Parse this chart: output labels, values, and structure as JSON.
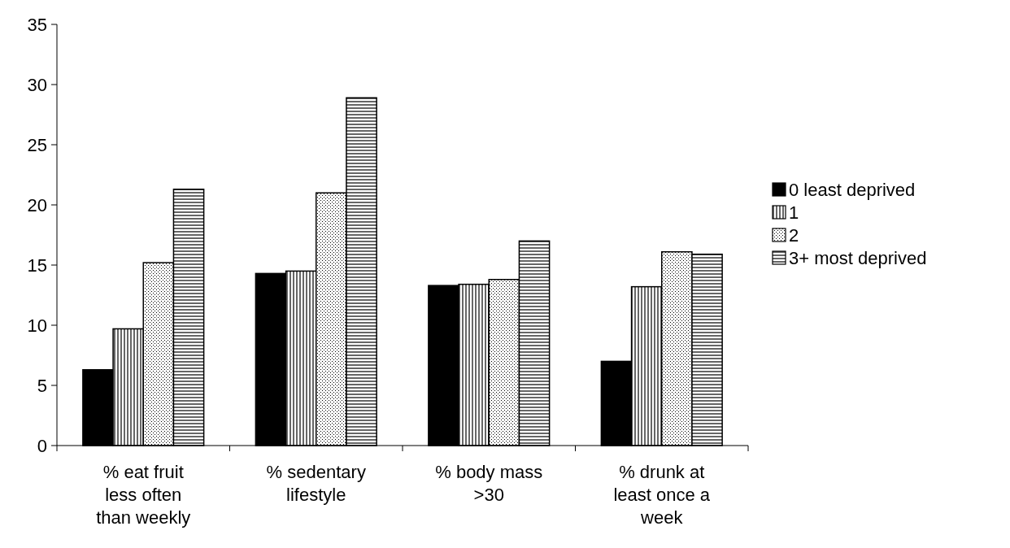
{
  "chart_data": {
    "type": "bar",
    "categories": [
      "% eat fruit less often than weekly",
      "% sedentary lifestyle",
      "% body mass >30",
      "% drunk at least once a week"
    ],
    "series": [
      {
        "name": "0 least deprived",
        "color": "#000000",
        "values": [
          6.3,
          14.3,
          13.3,
          7.0
        ]
      },
      {
        "name": "1",
        "color": "#000000",
        "values": [
          9.7,
          14.5,
          13.4,
          13.2
        ]
      },
      {
        "name": "2",
        "color": "#000000",
        "values": [
          15.2,
          21.0,
          13.8,
          16.1
        ]
      },
      {
        "name": "3+ most deprived",
        "color": "#000000",
        "values": [
          21.3,
          28.9,
          17.0,
          15.9
        ]
      }
    ],
    "ylim": [
      0,
      35
    ],
    "yticks": [
      0,
      5,
      10,
      15,
      20,
      25,
      30,
      35
    ],
    "grid": false,
    "legend": "right"
  }
}
